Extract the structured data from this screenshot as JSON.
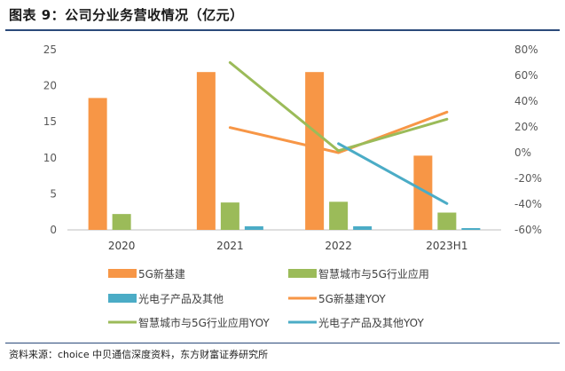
{
  "figure_title": "图表 9：公司分业务营收情况（亿元）",
  "source_note": "资料来源：choice 中贝通信深度资料，东方财富证券研究所",
  "colors": {
    "bar_5g": "#F79646",
    "bar_smart": "#9BBB59",
    "bar_opto": "#4BACC6",
    "line_5g": "#F79646",
    "line_smart": "#9BBB59",
    "line_opto": "#4BACC6",
    "axis": "#bfbfbf",
    "tick_text": "#595959"
  },
  "chart_data": {
    "type": "bar",
    "categories": [
      "2020",
      "2021",
      "2022",
      "2023H1"
    ],
    "y_left": {
      "min": 0,
      "max": 25,
      "ticks": [
        "0",
        "5",
        "10",
        "15",
        "20",
        "25"
      ],
      "tick_values": [
        0,
        5,
        10,
        15,
        20,
        25
      ]
    },
    "y_right": {
      "min": -60,
      "max": 80,
      "ticks": [
        "-60%",
        "-40%",
        "-20%",
        "0%",
        "20%",
        "40%",
        "60%",
        "80%"
      ],
      "tick_values": [
        -60,
        -40,
        -20,
        0,
        20,
        40,
        60,
        80
      ]
    },
    "grid": false,
    "legend_position": "bottom",
    "bar_series": [
      {
        "name": "5G新基建",
        "values": [
          18.3,
          21.9,
          21.9,
          10.3
        ]
      },
      {
        "name": "智慧城市与5G行业应用",
        "values": [
          2.2,
          3.8,
          3.9,
          2.4
        ]
      },
      {
        "name": "光电子产品及其他",
        "values": [
          0.0,
          0.5,
          0.5,
          0.15
        ]
      }
    ],
    "line_series": [
      {
        "name": "5G新基建YOY",
        "values": [
          null,
          19.5,
          0.0,
          31.5
        ]
      },
      {
        "name": "智慧城市与5G行业应用YOY",
        "values": [
          null,
          70.0,
          1.5,
          26.0
        ]
      },
      {
        "name": "光电子产品及其他YOY",
        "values": [
          null,
          null,
          7.0,
          -39.5
        ]
      }
    ]
  }
}
